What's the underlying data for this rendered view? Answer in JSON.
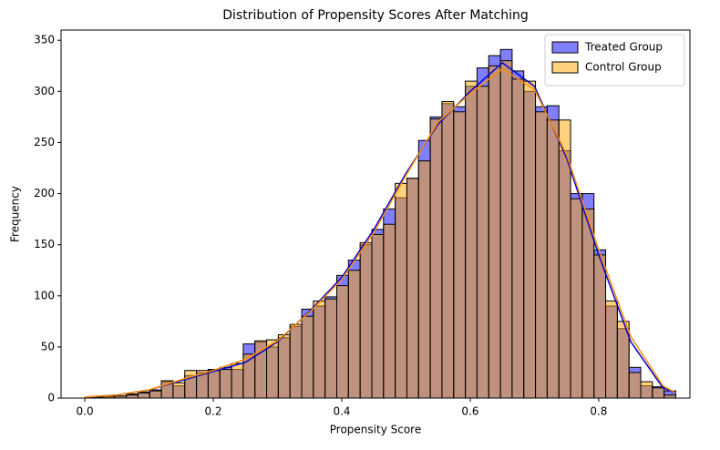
{
  "chart_data": {
    "type": "histogram",
    "title": "Distribution of Propensity Scores After Matching",
    "x_label": "Propensity Score",
    "y_label": "Frequency",
    "bins": [
      0.01,
      0.0282,
      0.0464,
      0.0646,
      0.0828,
      0.101,
      0.1192,
      0.1374,
      0.1556,
      0.1738,
      0.192,
      0.2102,
      0.2284,
      0.2466,
      0.2648,
      0.283,
      0.3012,
      0.3194,
      0.3376,
      0.3558,
      0.374,
      0.3922,
      0.4104,
      0.4286,
      0.4468,
      0.465,
      0.4832,
      0.5014,
      0.5196,
      0.5378,
      0.556,
      0.5742,
      0.5924,
      0.6106,
      0.6288,
      0.647,
      0.6652,
      0.6834,
      0.7016,
      0.7198,
      0.738,
      0.7562,
      0.7744,
      0.7926,
      0.8108,
      0.829,
      0.8472,
      0.8654,
      0.8836,
      0.9018,
      0.92
    ],
    "series": [
      {
        "name": "Treated Group",
        "color": "#0000ff",
        "line_color": "#0000cc",
        "opacity": 0.5,
        "values": [
          1,
          1,
          2,
          4,
          6,
          8,
          16,
          12,
          22,
          25,
          28,
          30,
          28,
          53,
          55,
          50,
          59,
          70,
          87,
          90,
          99,
          120,
          135,
          150,
          165,
          185,
          196,
          215,
          252,
          275,
          288,
          285,
          305,
          323,
          335,
          341,
          320,
          300,
          285,
          286,
          242,
          200,
          200,
          145,
          90,
          68,
          30,
          12,
          11,
          7
        ],
        "kde": {
          "x": [
            0.0,
            0.05,
            0.1,
            0.15,
            0.2,
            0.25,
            0.3,
            0.35,
            0.4,
            0.45,
            0.5,
            0.55,
            0.6,
            0.65,
            0.7,
            0.75,
            0.8,
            0.85,
            0.9,
            0.92
          ],
          "values": [
            1,
            3,
            8,
            17,
            26,
            35,
            55,
            85,
            118,
            165,
            220,
            268,
            300,
            328,
            305,
            235,
            140,
            55,
            10,
            5
          ]
        }
      },
      {
        "name": "Control Group",
        "color": "#ffa500",
        "line_color": "#ff8c00",
        "opacity": 0.5,
        "values": [
          1,
          2,
          2,
          3,
          5,
          7,
          17,
          15,
          27,
          27,
          27,
          28,
          34,
          43,
          56,
          57,
          62,
          72,
          80,
          95,
          97,
          110,
          125,
          152,
          160,
          170,
          210,
          215,
          232,
          273,
          290,
          280,
          310,
          305,
          325,
          330,
          312,
          310,
          280,
          272,
          272,
          195,
          185,
          140,
          95,
          75,
          25,
          16,
          10,
          3
        ],
        "kde": {
          "x": [
            0.0,
            0.05,
            0.1,
            0.15,
            0.2,
            0.25,
            0.3,
            0.35,
            0.4,
            0.45,
            0.5,
            0.55,
            0.6,
            0.65,
            0.7,
            0.75,
            0.8,
            0.85,
            0.9,
            0.92
          ],
          "values": [
            1,
            3,
            8,
            18,
            27,
            38,
            56,
            84,
            116,
            162,
            218,
            270,
            298,
            322,
            302,
            238,
            145,
            60,
            12,
            5
          ]
        }
      }
    ],
    "xlim": [
      -0.037,
      0.942
    ],
    "ylim": [
      0,
      360
    ],
    "xticks": [
      {
        "value": 0,
        "label": "0.0"
      },
      0.2,
      0.4,
      0.6,
      0.8
    ],
    "yticks": [
      0,
      50,
      100,
      150,
      200,
      250,
      300,
      350
    ],
    "legend": "upper right"
  }
}
